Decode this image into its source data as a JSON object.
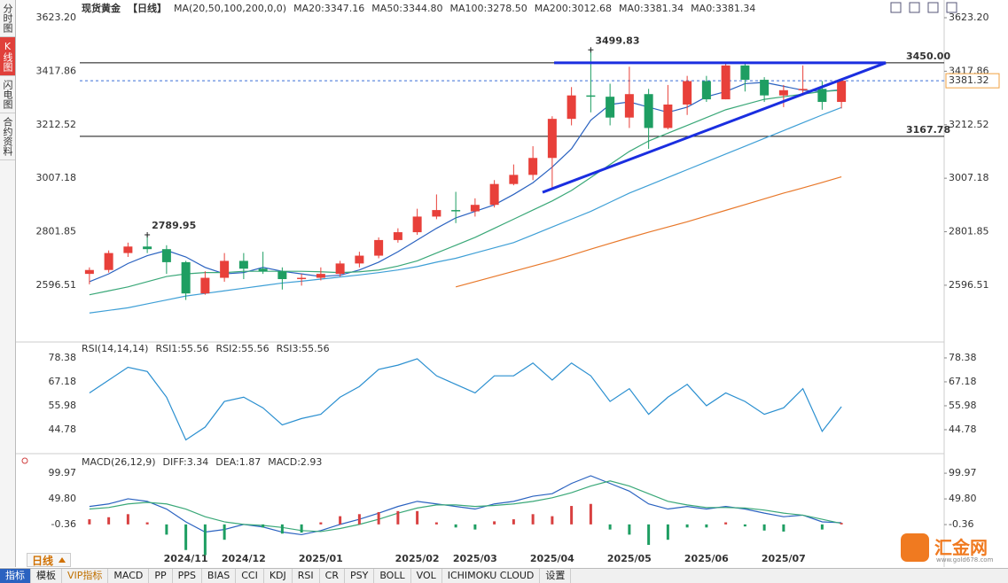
{
  "side_tabs": [
    "分时图",
    "K线图",
    "闪电图",
    "合约资料"
  ],
  "period_tab": "日线",
  "toolbar": [
    "指标",
    "模板",
    "VIP指标",
    "MACD",
    "PP",
    "PPS",
    "BIAS",
    "CCI",
    "KDJ",
    "RSI",
    "CR",
    "PSY",
    "BOLL",
    "VOL",
    "ICHIMOKU CLOUD",
    "设置"
  ],
  "logo": {
    "name": "汇金网",
    "url": "www.gold678.com"
  },
  "chart_data": [
    {
      "type": "candlestick",
      "title": "现货黄金",
      "period": "【日线】",
      "header_items": [
        "MA(20,50,100,200,0,0)",
        "MA0:3381.34",
        "MA0:3381.34"
      ],
      "categories": [
        null,
        null,
        null,
        null,
        null,
        "2024/11",
        null,
        null,
        "2024/12",
        null,
        null,
        null,
        "2025/01",
        null,
        null,
        null,
        null,
        "2025/02",
        null,
        null,
        "2025/03",
        null,
        null,
        null,
        "2025/04",
        null,
        null,
        null,
        "2025/05",
        null,
        null,
        null,
        "2025/06",
        null,
        null,
        null,
        "2025/07",
        null,
        null,
        null
      ],
      "open": [
        2640,
        2655,
        2720,
        2745,
        2735,
        2685,
        2565,
        2625,
        2690,
        2660,
        2650,
        2620,
        2625,
        2640,
        2680,
        2710,
        2770,
        2800,
        2860,
        2885,
        2880,
        2905,
        2985,
        3020,
        3085,
        3235,
        3325,
        3320,
        3240,
        3330,
        3200,
        3290,
        3380,
        3310,
        3440,
        3385,
        3325,
        3345,
        3350,
        3300
      ],
      "high": [
        2665,
        2730,
        2760,
        2789.95,
        2750,
        2690,
        2650,
        2720,
        2720,
        2725,
        2665,
        2640,
        2665,
        2690,
        2725,
        2780,
        2815,
        2890,
        2945,
        2955,
        2930,
        3000,
        3060,
        3130,
        3245,
        3357,
        3499.83,
        3370,
        3435,
        3350,
        3365,
        3400,
        3400,
        3450,
        3450,
        3395,
        3365,
        3440,
        3380,
        3385
      ],
      "low": [
        2600,
        2645,
        2705,
        2720,
        2640,
        2540,
        2560,
        2610,
        2620,
        2640,
        2580,
        2595,
        2615,
        2630,
        2665,
        2700,
        2760,
        2790,
        2850,
        2835,
        2860,
        2895,
        2980,
        3000,
        2970,
        3210,
        3260,
        3210,
        3200,
        3120,
        3195,
        3250,
        3300,
        3310,
        3340,
        3300,
        3280,
        3325,
        3270,
        3275
      ],
      "close": [
        2655,
        2720,
        2745,
        2735,
        2685,
        2565,
        2625,
        2690,
        2660,
        2650,
        2620,
        2625,
        2640,
        2680,
        2710,
        2770,
        2800,
        2860,
        2885,
        2880,
        2905,
        2985,
        3020,
        3085,
        3235,
        3325,
        3320,
        3240,
        3330,
        3200,
        3290,
        3380,
        3310,
        3440,
        3385,
        3325,
        3345,
        3350,
        3300,
        3381.32
      ],
      "up_color": "#e8403a",
      "down_color": "#1e9e62",
      "series": [
        {
          "name": "MA20:3347.16",
          "color": "#2a62c0",
          "values": [
            2610,
            2640,
            2680,
            2710,
            2730,
            2705,
            2665,
            2640,
            2645,
            2665,
            2650,
            2640,
            2630,
            2635,
            2655,
            2685,
            2725,
            2770,
            2815,
            2855,
            2880,
            2905,
            2945,
            2990,
            3050,
            3120,
            3230,
            3290,
            3300,
            3280,
            3260,
            3280,
            3320,
            3340,
            3370,
            3375,
            3360,
            3345,
            3340,
            3347.16
          ]
        },
        {
          "name": "MA50:3344.80",
          "color": "#3aa878",
          "values": [
            2560,
            2575,
            2590,
            2610,
            2630,
            2640,
            2645,
            2645,
            2650,
            2650,
            2650,
            2650,
            2648,
            2645,
            2648,
            2655,
            2670,
            2690,
            2720,
            2750,
            2780,
            2815,
            2850,
            2885,
            2920,
            2960,
            3010,
            3060,
            3110,
            3150,
            3180,
            3210,
            3240,
            3270,
            3290,
            3310,
            3320,
            3330,
            3340,
            3344.8
          ]
        },
        {
          "name": "MA100:3278.50",
          "color": "#3e9fd6",
          "values": [
            2490,
            2500,
            2510,
            2525,
            2540,
            2555,
            2565,
            2575,
            2585,
            2595,
            2605,
            2612,
            2620,
            2628,
            2636,
            2645,
            2655,
            2668,
            2685,
            2700,
            2720,
            2740,
            2760,
            2790,
            2820,
            2850,
            2880,
            2915,
            2950,
            2980,
            3010,
            3040,
            3070,
            3100,
            3130,
            3160,
            3190,
            3220,
            3250,
            3278.5
          ]
        },
        {
          "name": "MA200:3012.68",
          "color": "#e8782a",
          "values": [
            null,
            null,
            null,
            null,
            null,
            null,
            null,
            null,
            null,
            null,
            null,
            null,
            null,
            null,
            null,
            null,
            null,
            null,
            null,
            2590,
            2610,
            2630,
            2650,
            2670,
            2690,
            2712,
            2735,
            2757,
            2779,
            2800,
            2820,
            2840,
            2862,
            2884,
            2906,
            2928,
            2950,
            2970,
            2991,
            3012.68
          ]
        }
      ],
      "annotations": [
        {
          "x": 26,
          "value": 3499.83,
          "label": "3499.83"
        },
        {
          "x": 3,
          "value": 2789.95,
          "label": "2789.95"
        }
      ],
      "levels": [
        {
          "value": 3450,
          "label": "3450.00"
        },
        {
          "value": 3167.78,
          "label": "3167.78"
        }
      ],
      "current": {
        "value": 3381.32,
        "label": "3381.32"
      },
      "trendlines": [
        {
          "x": [
            24.1,
            41.3
          ],
          "y": [
            3450,
            3450
          ]
        },
        {
          "x": [
            23.5,
            41.3
          ],
          "y": [
            2953,
            3450
          ]
        }
      ],
      "ylim": [
        2382,
        3664
      ],
      "yticks": [
        {
          "value": 3623.2,
          "label": "3623.20"
        },
        3417.86,
        3212.52,
        3007.18,
        2801.85,
        2596.51
      ],
      "grid": false
    },
    {
      "type": "line",
      "title": "RSI(14,14,14)",
      "header_items": [
        "RSI2:55.56",
        "RSI3:55.56"
      ],
      "series": [
        {
          "name": "RSI1:55.56",
          "color": "#2a8fd0",
          "values": [
            62,
            68,
            74,
            72,
            60,
            40,
            46,
            58,
            60,
            55,
            47,
            50,
            52,
            60,
            65,
            73,
            75,
            78,
            70,
            66,
            62,
            70,
            70,
            76,
            68,
            76,
            70,
            58,
            64,
            52,
            60,
            66,
            56,
            62,
            58,
            52,
            55,
            64,
            44,
            55.56
          ]
        }
      ],
      "ylim": [
        34.4,
        85
      ],
      "yticks": [
        78.38,
        67.18,
        55.98,
        44.78
      ],
      "grid": false
    },
    {
      "type": "line",
      "title": "MACD(26,12,9)",
      "series": [
        {
          "name": "DIFF:3.34",
          "color": "#2a62c0",
          "values": [
            35,
            40,
            50,
            45,
            30,
            5,
            -15,
            -10,
            0,
            -5,
            -15,
            -20,
            -12,
            0,
            10,
            22,
            35,
            45,
            40,
            35,
            30,
            40,
            45,
            55,
            60,
            80,
            95,
            80,
            65,
            40,
            30,
            35,
            30,
            35,
            30,
            22,
            15,
            18,
            5,
            3.34
          ]
        },
        {
          "name": "DEA:1.87",
          "color": "#3aa878",
          "values": [
            30,
            33,
            40,
            43,
            40,
            30,
            15,
            5,
            0,
            -2,
            -6,
            -12,
            -14,
            -8,
            0,
            10,
            22,
            32,
            38,
            38,
            35,
            37,
            40,
            45,
            52,
            62,
            75,
            85,
            75,
            60,
            45,
            38,
            33,
            33,
            32,
            28,
            22,
            18,
            10,
            1.87
          ]
        },
        {
          "name": "MACD:2.93",
          "color": "#2a8fd0",
          "type": "bar",
          "up_color": "#d84040",
          "down_color": "#1e9e62",
          "values": [
            10,
            14,
            20,
            4,
            -20,
            -50,
            -60,
            -30,
            0,
            -6,
            -18,
            -16,
            4,
            16,
            20,
            24,
            26,
            26,
            4,
            -6,
            -10,
            6,
            10,
            20,
            16,
            36,
            40,
            -10,
            -20,
            -40,
            -30,
            -6,
            -6,
            4,
            -4,
            -12,
            -14,
            0,
            -10,
            2.93
          ]
        }
      ],
      "ylim": [
        -66,
        133
      ],
      "yticks": [
        99.97,
        {
          "value": 49.8,
          "label": "49.80"
        },
        -0.36
      ],
      "grid": false
    }
  ]
}
